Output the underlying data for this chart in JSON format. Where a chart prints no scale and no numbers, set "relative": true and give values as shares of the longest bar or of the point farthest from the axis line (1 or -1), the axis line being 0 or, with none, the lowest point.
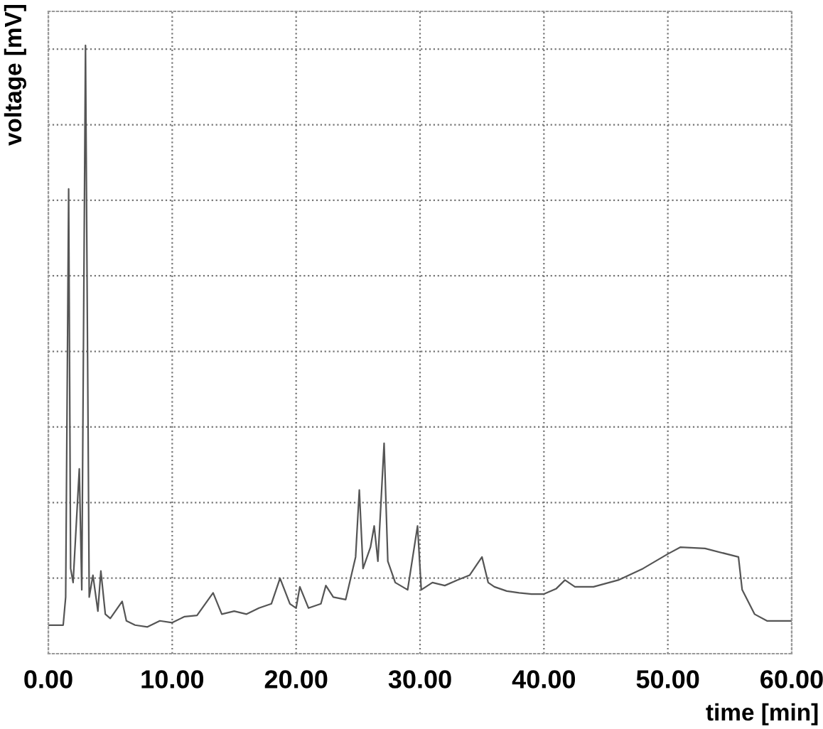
{
  "chart_data": {
    "type": "line",
    "xlabel": "time [min]",
    "ylabel": "voltage [mV]",
    "relative": true,
    "xlim": [
      0,
      60
    ],
    "xticks": [
      {
        "value": 0,
        "label": "0.00"
      },
      {
        "value": 10,
        "label": "10.00"
      },
      {
        "value": 20,
        "label": "20.00"
      },
      {
        "value": 30,
        "label": "30.00"
      },
      {
        "value": 40,
        "label": "40.00"
      },
      {
        "value": 50,
        "label": "50.00"
      },
      {
        "value": 60,
        "label": "60.00"
      }
    ],
    "grid": true,
    "line_style": "solid",
    "tick_labels": "x",
    "series": [
      {
        "color": "#555555",
        "x": [
          0,
          1.2,
          1.4,
          1.64,
          1.8,
          2.0,
          2.5,
          2.7,
          3.0,
          3.3,
          3.6,
          4.0,
          4.24,
          4.6,
          5.0,
          5.96,
          6.3,
          7,
          8,
          9,
          10,
          11,
          12,
          13.3,
          14,
          15,
          16,
          17,
          18,
          18.7,
          19.5,
          20,
          20.3,
          21,
          22,
          22.4,
          23,
          24,
          24.8,
          25.1,
          25.4,
          26.0,
          26.3,
          26.6,
          27.1,
          27.4,
          28,
          29,
          29.8,
          30.1,
          31,
          32,
          33,
          34,
          35.0,
          35.5,
          36,
          37,
          38,
          39,
          40,
          41,
          41.7,
          42.5,
          44,
          46,
          48,
          50,
          51,
          53,
          55.7,
          56,
          57,
          58,
          60
        ],
        "values": [
          0.047,
          0.047,
          0.093,
          0.764,
          0.14,
          0.117,
          0.304,
          0.105,
          1.0,
          0.093,
          0.129,
          0.07,
          0.136,
          0.065,
          0.058,
          0.086,
          0.054,
          0.047,
          0.044,
          0.054,
          0.051,
          0.061,
          0.063,
          0.1,
          0.065,
          0.07,
          0.065,
          0.075,
          0.082,
          0.124,
          0.082,
          0.075,
          0.11,
          0.075,
          0.082,
          0.112,
          0.093,
          0.089,
          0.159,
          0.269,
          0.14,
          0.175,
          0.21,
          0.152,
          0.346,
          0.152,
          0.117,
          0.105,
          0.21,
          0.105,
          0.117,
          0.112,
          0.121,
          0.129,
          0.159,
          0.117,
          0.11,
          0.103,
          0.1,
          0.098,
          0.098,
          0.107,
          0.121,
          0.11,
          0.11,
          0.121,
          0.14,
          0.164,
          0.175,
          0.173,
          0.159,
          0.105,
          0.065,
          0.054,
          0.054
        ]
      }
    ]
  }
}
